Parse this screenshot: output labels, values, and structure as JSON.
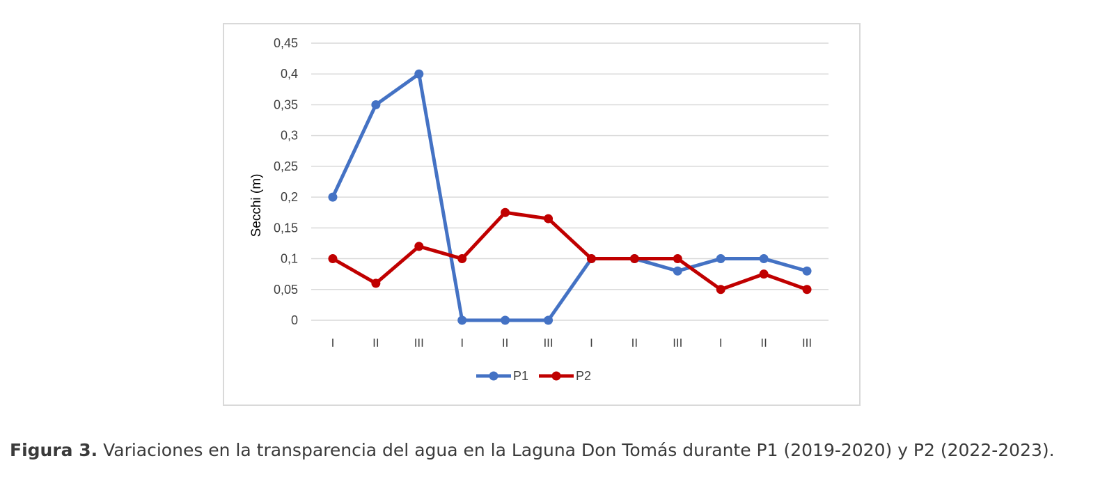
{
  "chart_data": {
    "type": "line",
    "categories": [
      "I",
      "II",
      "III",
      "I",
      "II",
      "III",
      "I",
      "II",
      "III",
      "I",
      "II",
      "III"
    ],
    "ylabel": "Secchi (m)",
    "xlabel": "",
    "ylim": [
      0,
      0.45
    ],
    "yticks": [
      "0",
      "0,05",
      "0,1",
      "0,15",
      "0,2",
      "0,25",
      "0,3",
      "0,35",
      "0,4",
      "0,45"
    ],
    "grid": true,
    "legend_position": "bottom",
    "series": [
      {
        "name": "P1",
        "color": "#4472c4",
        "values": [
          0.2,
          0.35,
          0.4,
          0,
          0,
          0,
          0.1,
          0.1,
          0.08,
          0.1,
          0.1,
          0.08
        ]
      },
      {
        "name": "P2",
        "color": "#c00000",
        "values": [
          0.1,
          0.06,
          0.12,
          0.1,
          0.175,
          0.165,
          0.1,
          0.1,
          0.1,
          0.05,
          0.075,
          0.05
        ]
      }
    ]
  },
  "caption": {
    "label": "Figura 3.",
    "text": " Variaciones en la transparencia del agua en la Laguna Don Tomás durante P1 (2019-2020) y P2 (2022-2023)."
  }
}
